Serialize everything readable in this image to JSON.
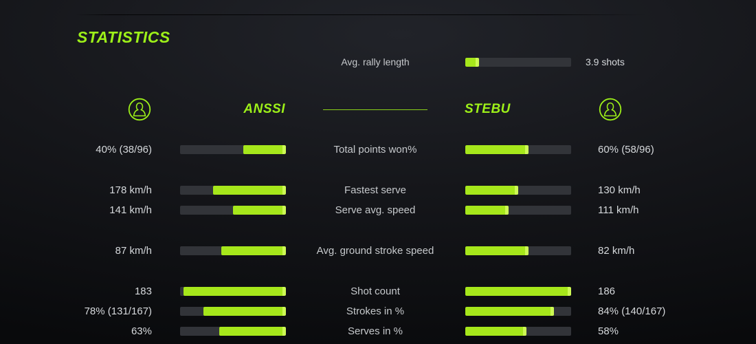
{
  "title": "STATISTICS",
  "colors": {
    "accent_green": "#9DF019",
    "bar_green": "#A6E71B",
    "bar_cap_green": "#CDF954",
    "bar_track": "#323439",
    "label_gray": "#C6C9CC",
    "value_gray": "#D6D9DC"
  },
  "rally": {
    "label": "Avg. rally length",
    "value": "3.9 shots",
    "fill": 0.13
  },
  "players": {
    "left": "ANSSI",
    "right": "STEBU",
    "icon": "person-circle-icon"
  },
  "stats": [
    {
      "label": "Total points won%",
      "left_value": "40% (38/96)",
      "left_fill": 0.4,
      "right_value": "60% (58/96)",
      "right_fill": 0.6,
      "gap_before": false
    },
    {
      "label": "Fastest serve",
      "left_value": "178 km/h",
      "left_fill": 0.69,
      "right_value": "130 km/h",
      "right_fill": 0.5,
      "gap_before": true
    },
    {
      "label": "Serve avg. speed",
      "left_value": "141 km/h",
      "left_fill": 0.5,
      "right_value": "111 km/h",
      "right_fill": 0.41,
      "gap_before": false
    },
    {
      "label": "Avg. ground stroke speed",
      "left_value": "87 km/h",
      "left_fill": 0.61,
      "right_value": "82 km/h",
      "right_fill": 0.6,
      "gap_before": true
    },
    {
      "label": "Shot count",
      "left_value": "183",
      "left_fill": 0.97,
      "right_value": "186",
      "right_fill": 1.0,
      "gap_before": true
    },
    {
      "label": "Strokes in %",
      "left_value": "78% (131/167)",
      "left_fill": 0.78,
      "right_value": "84% (140/167)",
      "right_fill": 0.84,
      "gap_before": false
    },
    {
      "label": "Serves in %",
      "left_value": "63%",
      "left_fill": 0.63,
      "right_value": "58%",
      "right_fill": 0.58,
      "gap_before": false
    }
  ]
}
